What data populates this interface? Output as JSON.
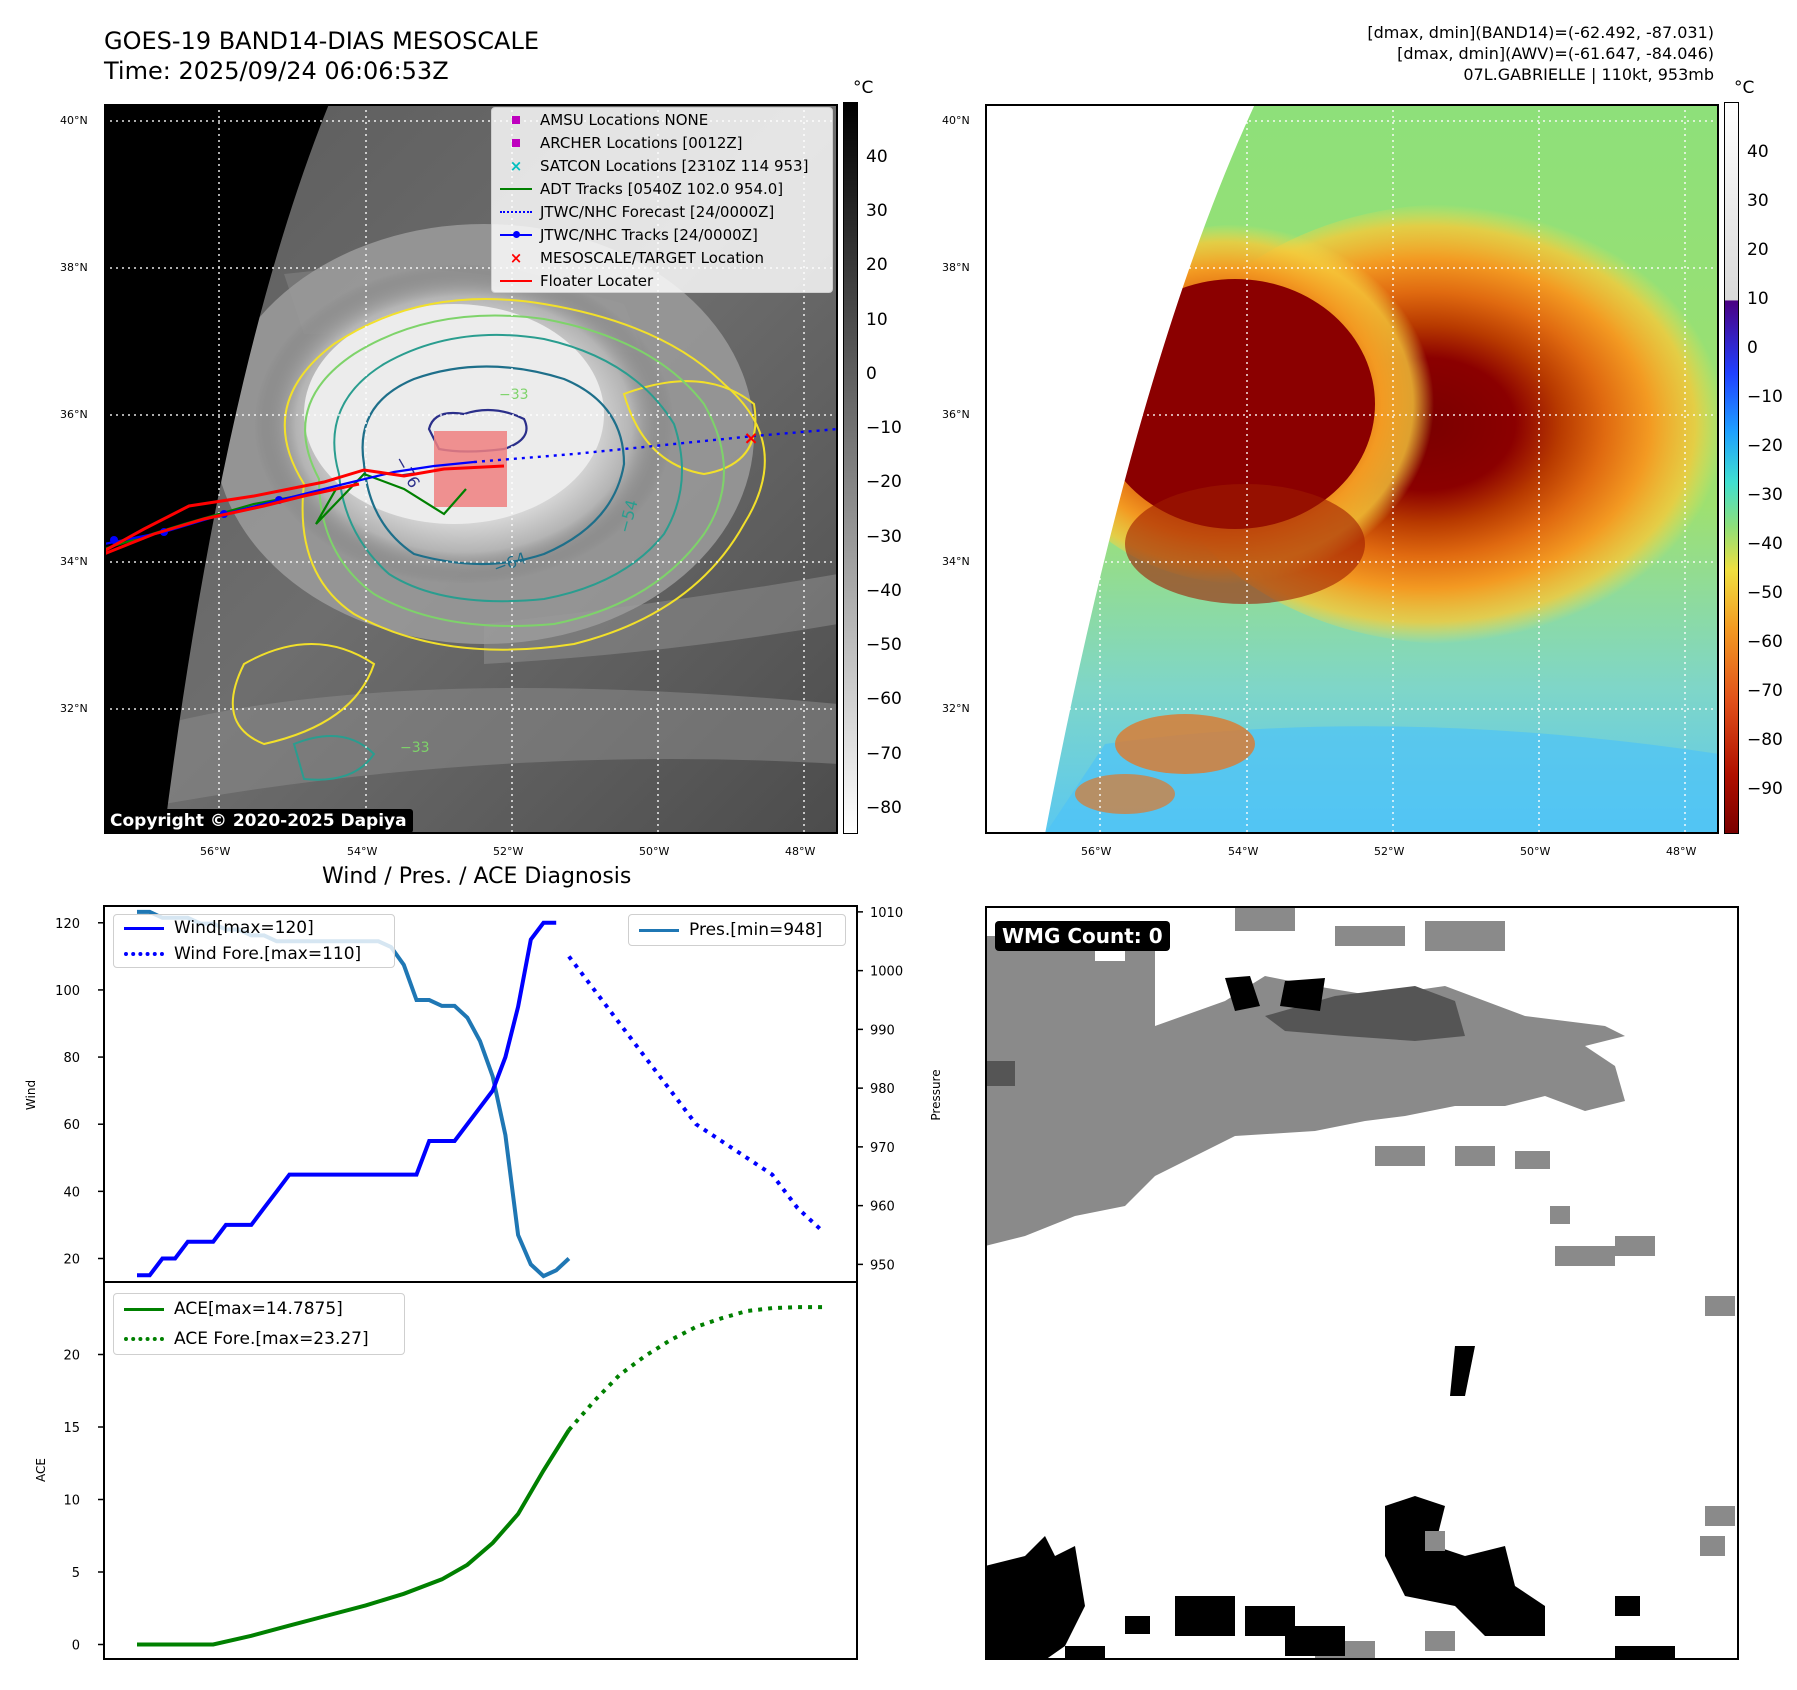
{
  "header": {
    "title_line1": "GOES-19 BAND14-DIAS MESOSCALE",
    "title_line2": "Time: 2025/09/24 06:06:53Z",
    "info_line1": "[dmax, dmin](BAND14)=(-62.492, -87.031)",
    "info_line2": "[dmax, dmin](AWV)=(-61.647, -84.046)",
    "info_line3": "07L.GABRIELLE | 110kt, 953mb"
  },
  "map_axes": {
    "lat_labels": [
      "40°N",
      "38°N",
      "36°N",
      "34°N",
      "32°N"
    ],
    "lon_labels": [
      "56°W",
      "54°W",
      "52°W",
      "50°W",
      "48°W"
    ]
  },
  "ir_panel": {
    "colorbar_unit": "°C",
    "colorbar_ticks": [
      "40",
      "30",
      "20",
      "10",
      "0",
      "−10",
      "−20",
      "−30",
      "−40",
      "−50",
      "−60",
      "−70",
      "−80"
    ],
    "contour_labels": [
      "−76",
      "−64",
      "−54",
      "−33",
      "−33"
    ],
    "copyright": "Copyright © 2020-2025 Dapiya",
    "legend": [
      {
        "label": "AMSU Locations NONE",
        "marker": "square",
        "color": "#bf00bf"
      },
      {
        "label": "ARCHER Locations [0012Z]",
        "marker": "square",
        "color": "#bf00bf"
      },
      {
        "label": "SATCON Locations [2310Z 114 953]",
        "marker": "x",
        "color": "#00bfbf"
      },
      {
        "label": "ADT Tracks [0540Z 102.0 954.0]",
        "marker": "line",
        "color": "#008000"
      },
      {
        "label": "JTWC/NHC Forecast [24/0000Z]",
        "marker": "dotted",
        "color": "#0000ff"
      },
      {
        "label": "JTWC/NHC Tracks [24/0000Z]",
        "marker": "line-dot",
        "color": "#0000ff"
      },
      {
        "label": "MESOSCALE/TARGET Location",
        "marker": "x",
        "color": "#ff0000"
      },
      {
        "label": "Floater Locater",
        "marker": "line",
        "color": "#ff0000"
      }
    ]
  },
  "awv_panel": {
    "colorbar_unit": "°C",
    "colorbar_ticks": [
      "40",
      "30",
      "20",
      "10",
      "0",
      "−10",
      "−20",
      "−30",
      "−40",
      "−50",
      "−60",
      "−70",
      "−80",
      "−90"
    ]
  },
  "diagnosis": {
    "title": "Wind / Pres. / ACE Diagnosis",
    "wind_ylabel": "Wind",
    "pressure_ylabel": "Pressure",
    "ace_ylabel": "ACE",
    "wind_ticks": [
      "120",
      "100",
      "80",
      "60",
      "40",
      "20"
    ],
    "pressure_ticks": [
      "1010",
      "1000",
      "990",
      "980",
      "970",
      "960",
      "950"
    ],
    "ace_ticks": [
      "20",
      "15",
      "10",
      "5",
      "0"
    ],
    "legend_wind": "Wind[max=120]",
    "legend_wind_fore": "Wind Fore.[max=110]",
    "legend_pres": "Pres.[min=948]",
    "legend_ace": "ACE[max=14.7875]",
    "legend_ace_fore": "ACE Fore.[max=23.27]"
  },
  "wmg_panel": {
    "label": "WMG Count: 0"
  },
  "chart_data": [
    {
      "type": "line",
      "title": "Wind / Pres. / ACE Diagnosis",
      "ylabel": "Wind",
      "ylim": [
        13,
        125
      ],
      "x": [
        0,
        1,
        2,
        3,
        4,
        5,
        6,
        7,
        8,
        9,
        10,
        11,
        12,
        13,
        14,
        15,
        16,
        17,
        18,
        19,
        20,
        21,
        22,
        23,
        24,
        25,
        26,
        27,
        28,
        29,
        30,
        31,
        32,
        33,
        34,
        35,
        36,
        37,
        38,
        39,
        40,
        41,
        42,
        43,
        44,
        45,
        46,
        47,
        48,
        49,
        50,
        51,
        52,
        53,
        54
      ],
      "series": [
        {
          "name": "Wind[max=120]",
          "color": "#0000ff",
          "style": "solid",
          "x": [
            0,
            1,
            2,
            3,
            4,
            5,
            6,
            7,
            8,
            9,
            10,
            11,
            12,
            13,
            14,
            15,
            16,
            17,
            18,
            19,
            20,
            21,
            22,
            23,
            24,
            25,
            26,
            27,
            28,
            29,
            30,
            31,
            32,
            33
          ],
          "values": [
            15,
            15,
            20,
            20,
            25,
            25,
            25,
            30,
            30,
            30,
            35,
            40,
            45,
            45,
            45,
            45,
            45,
            45,
            45,
            45,
            45,
            45,
            45,
            55,
            55,
            55,
            60,
            65,
            70,
            80,
            95,
            115,
            120,
            120
          ]
        },
        {
          "name": "Wind Fore.[max=110]",
          "color": "#0000ff",
          "style": "dotted",
          "x": [
            34,
            36,
            38,
            40,
            42,
            44,
            46,
            48,
            50,
            52,
            54
          ],
          "values": [
            110,
            100,
            90,
            80,
            70,
            60,
            55,
            50,
            45,
            35,
            28
          ]
        }
      ]
    },
    {
      "type": "line",
      "ylabel": "Pressure",
      "ylim": [
        947,
        1011
      ],
      "series": [
        {
          "name": "Pres.[min=948]",
          "color": "#1f77b4",
          "style": "solid",
          "x": [
            0,
            1,
            2,
            3,
            4,
            5,
            6,
            7,
            8,
            9,
            10,
            11,
            12,
            13,
            14,
            15,
            16,
            17,
            18,
            19,
            20,
            21,
            22,
            23,
            24,
            25,
            26,
            27,
            28,
            29,
            30,
            31,
            32,
            33,
            34
          ],
          "values": [
            1010,
            1010,
            1009,
            1009,
            1009,
            1008,
            1008,
            1007,
            1007,
            1006,
            1006,
            1005,
            1005,
            1005,
            1005,
            1005,
            1005,
            1005,
            1005,
            1005,
            1004,
            1001,
            995,
            995,
            994,
            994,
            992,
            988,
            982,
            972,
            955,
            950,
            948,
            949,
            951
          ]
        }
      ]
    },
    {
      "type": "line",
      "ylabel": "ACE",
      "ylim": [
        -1,
        25
      ],
      "series": [
        {
          "name": "ACE[max=14.7875]",
          "color": "#008000",
          "style": "solid",
          "x": [
            0,
            3,
            6,
            9,
            12,
            15,
            18,
            21,
            24,
            26,
            28,
            30,
            32,
            34
          ],
          "values": [
            0,
            0,
            0,
            0.6,
            1.3,
            2.0,
            2.7,
            3.5,
            4.5,
            5.5,
            7.0,
            9.0,
            12.0,
            14.79
          ]
        },
        {
          "name": "ACE Fore.[max=23.27]",
          "color": "#008000",
          "style": "dotted",
          "x": [
            34,
            36,
            38,
            40,
            42,
            44,
            46,
            48,
            50,
            52,
            54
          ],
          "values": [
            14.79,
            16.8,
            18.6,
            19.9,
            21.0,
            21.9,
            22.5,
            23.0,
            23.2,
            23.27,
            23.27
          ]
        }
      ]
    }
  ]
}
